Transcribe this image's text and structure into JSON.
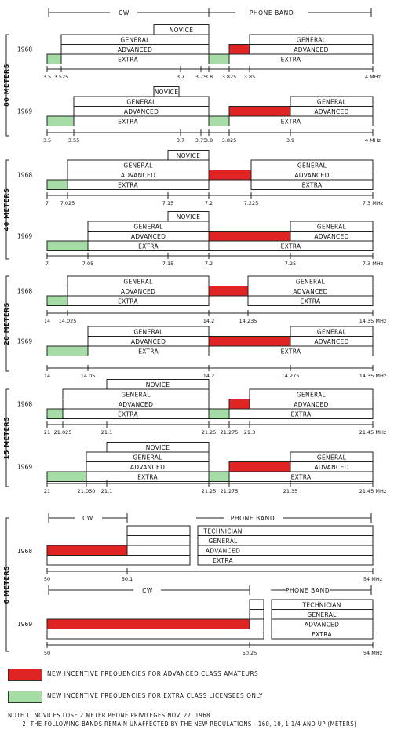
{
  "colors": {
    "advanced": "#e02424",
    "extra": "#a6dca6",
    "line": "#222222"
  },
  "top_header": {
    "cw": "CW",
    "phone": "PHONE BAND"
  },
  "bands": [
    {
      "name": "80 METERS",
      "rows": [
        {
          "year": "1968",
          "unit": "MHz",
          "ticks": [
            "3.5",
            "3.525",
            "3.7",
            "3.75",
            "3.8",
            "3.825",
            "3.85",
            "4 MHz"
          ],
          "labels": {
            "novice": "NOVICE",
            "general": "GENERAL",
            "advanced": "ADVANCED",
            "extra": "EXTRA"
          }
        },
        {
          "year": "1969",
          "ticks": [
            "3.5",
            "3.55",
            "3.7",
            "3.75",
            "3.8",
            "3.825",
            "3.9",
            "4 MHz"
          ],
          "labels": {
            "novice": "NOVICE",
            "general": "GENERAL",
            "advanced": "ADVANCED",
            "extra": "EXTRA"
          }
        }
      ]
    },
    {
      "name": "40 METERS",
      "rows": [
        {
          "year": "1968",
          "ticks": [
            "7",
            "7.025",
            "7.15",
            "7.2",
            "7.225",
            "7.3 MHz"
          ],
          "labels": {
            "novice": "NOVICE",
            "general": "GENERAL",
            "advanced": "ADVANCED",
            "extra": "EXTRA"
          }
        },
        {
          "year": "1969",
          "ticks": [
            "7",
            "7.05",
            "7.15",
            "7.2",
            "7.25",
            "7.3 MHz"
          ],
          "labels": {
            "novice": "NOVICE",
            "general": "GENERAL",
            "advanced": "ADVANCED",
            "extra": "EXTRA"
          }
        }
      ]
    },
    {
      "name": "20 METERS",
      "rows": [
        {
          "year": "1968",
          "ticks": [
            "14",
            "14.025",
            "14.2",
            "14.235",
            "14.35 MHz"
          ],
          "labels": {
            "general": "GENERAL",
            "advanced": "ADVANCED",
            "extra": "EXTRA"
          }
        },
        {
          "year": "1969",
          "ticks": [
            "14",
            "14.05",
            "14.2",
            "14.275",
            "14.35 MHz"
          ],
          "labels": {
            "general": "GENERAL",
            "advanced": "ADVANCED",
            "extra": "EXTRA"
          }
        }
      ]
    },
    {
      "name": "15 METERS",
      "rows": [
        {
          "year": "1968",
          "ticks": [
            "21",
            "21.025",
            "21.1",
            "21.25",
            "21.275",
            "21.3",
            "21.45 MHz"
          ],
          "labels": {
            "novice": "NOVICE",
            "general": "GENERAL",
            "advanced": "ADVANCED",
            "extra": "EXTRA"
          }
        },
        {
          "year": "1969",
          "ticks": [
            "21",
            "21.050",
            "21.1",
            "21.25",
            "21.275",
            "21.35",
            "21.45 MHz"
          ],
          "labels": {
            "novice": "NOVICE",
            "general": "GENERAL",
            "advanced": "ADVANCED",
            "extra": "EXTRA"
          }
        }
      ]
    },
    {
      "name": "6 METERS",
      "rows": [
        {
          "year": "1968",
          "ticks": [
            "50",
            "50.1",
            "54 MHz"
          ],
          "header": {
            "cw": "CW",
            "phone": "PHONE BAND"
          },
          "labels": {
            "technician": "TECHNICIAN",
            "general": "GENERAL",
            "advanced": "ADVANCED",
            "extra": "EXTRA"
          }
        },
        {
          "year": "1969",
          "ticks": [
            "50",
            "50.25",
            "54 MHz"
          ],
          "header": {
            "cw": "CW",
            "phone": "PHONE BAND"
          },
          "labels": {
            "technician": "TECHNICIAN",
            "general": "GENERAL",
            "advanced": "ADVANCED",
            "extra": "EXTRA"
          }
        }
      ]
    }
  ],
  "legend": {
    "advanced": "NEW INCENTIVE FREQUENCIES FOR ADVANCED CLASS AMATEURS",
    "extra": "NEW INCENTIVE FREQUENCIES FOR EXTRA CLASS LICENSEES ONLY"
  },
  "notes": [
    "NOTE 1: NOVICES LOSE 2 METER PHONE PRIVILEGES NOV. 22, 1968",
    "       2: THE FOLLOWING BANDS REMAIN UNAFFECTED BY THE NEW REGULATIONS - 160, 10, 1 1/4 AND UP (METERS)"
  ]
}
